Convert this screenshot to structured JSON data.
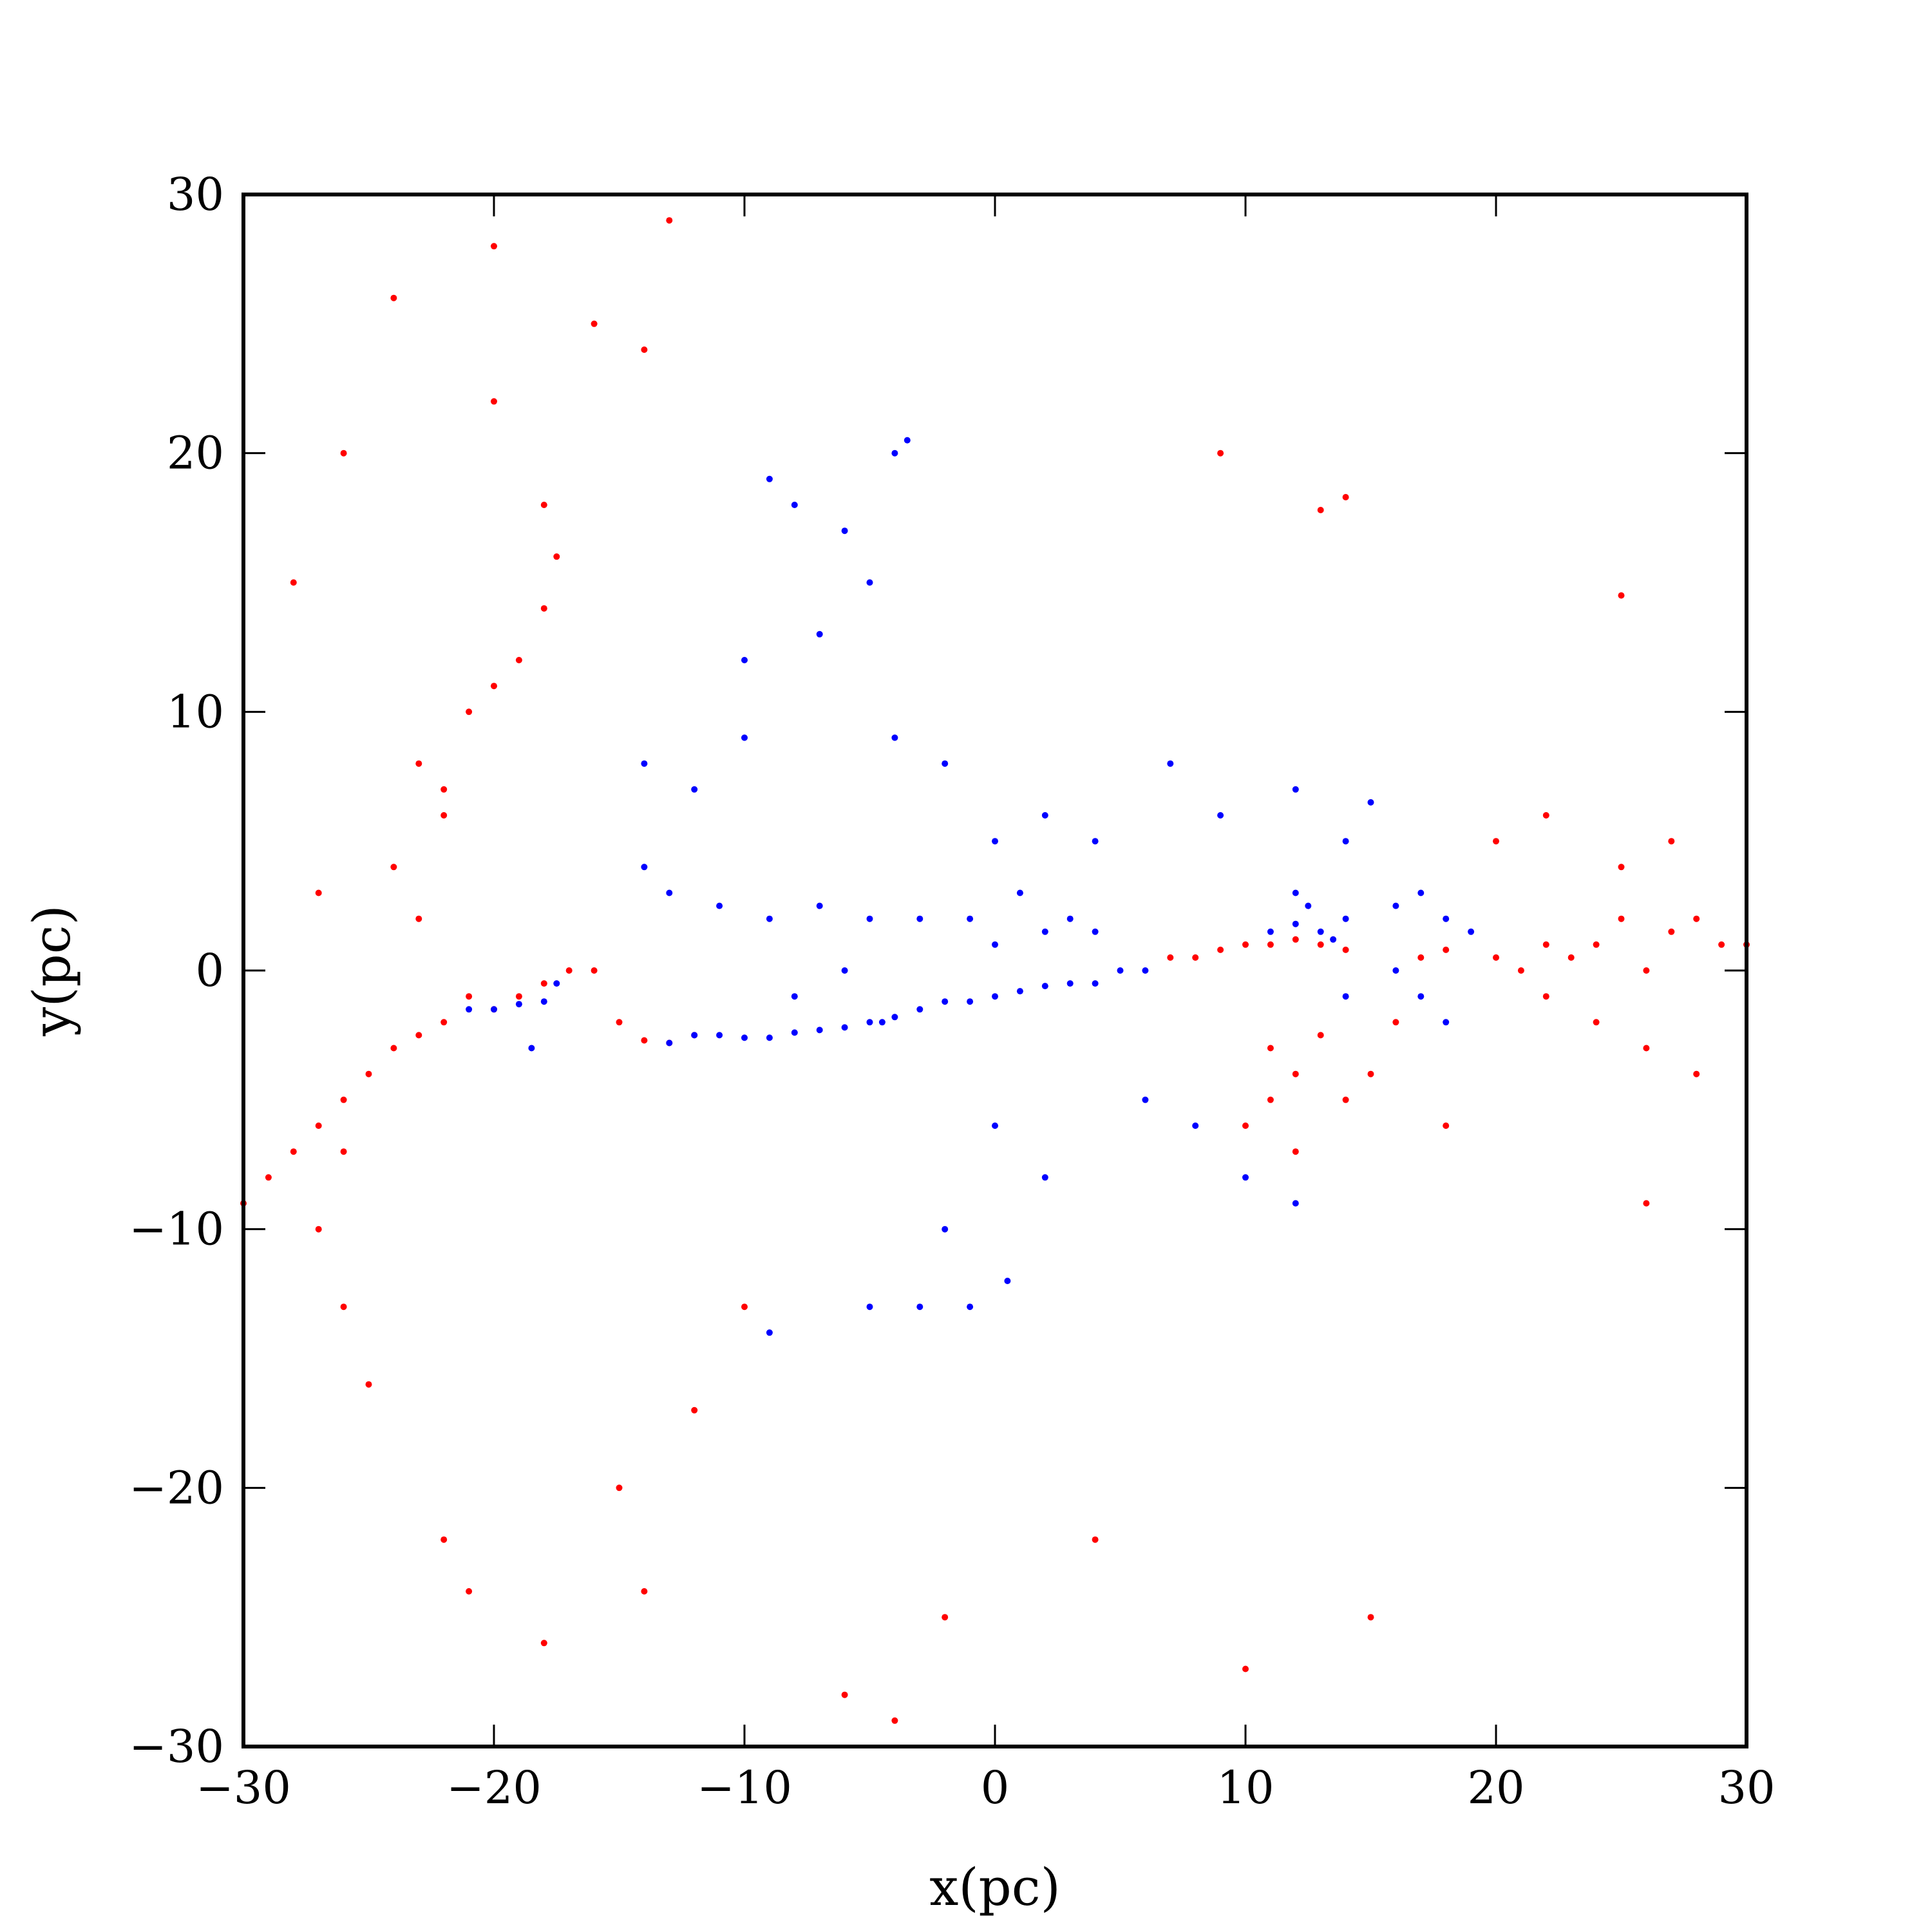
{
  "chart_data": {
    "type": "scatter",
    "title": "",
    "xlabel": "x(pc)",
    "ylabel": "y(pc)",
    "xlim": [
      -30,
      30
    ],
    "ylim": [
      -30,
      30
    ],
    "xticks": [
      -30,
      -20,
      -10,
      0,
      10,
      20,
      30
    ],
    "yticks": [
      -30,
      -20,
      -10,
      0,
      10,
      20,
      30
    ],
    "xtick_labels": [
      "−30",
      "−20",
      "−10",
      "0",
      "10",
      "20",
      "30"
    ],
    "ytick_labels": [
      "−30",
      "−20",
      "−10",
      "0",
      "10",
      "20",
      "30"
    ],
    "grid": false,
    "legend": "none",
    "series": [
      {
        "color": "#ff0000",
        "points": [
          [
            -22,
            6
          ],
          [
            -21,
            10
          ],
          [
            -20,
            11
          ],
          [
            -19,
            12
          ],
          [
            -18,
            14
          ],
          [
            -17.5,
            16
          ],
          [
            -23,
            8
          ],
          [
            -22,
            7
          ],
          [
            -24,
            4
          ],
          [
            -23,
            2
          ],
          [
            -21,
            -1
          ],
          [
            -20,
            -1.5
          ],
          [
            -19,
            -1
          ],
          [
            -18,
            -0.5
          ],
          [
            -17,
            0
          ],
          [
            -16,
            0
          ],
          [
            -15,
            -2
          ],
          [
            -14,
            -2.7
          ],
          [
            -13,
            -2.8
          ],
          [
            -12,
            -2.5
          ],
          [
            -25,
            -4
          ],
          [
            -26,
            -5
          ],
          [
            -27,
            -6
          ],
          [
            -28,
            -7
          ],
          [
            -29,
            -8
          ],
          [
            -30,
            -9
          ],
          [
            -24,
            -3
          ],
          [
            -23,
            -2.5
          ],
          [
            -22,
            -2
          ],
          [
            -26,
            -7
          ],
          [
            -27,
            -10
          ],
          [
            -26,
            -13
          ],
          [
            -25,
            -16
          ],
          [
            -22,
            -22
          ],
          [
            -21,
            -24
          ],
          [
            -18,
            -26
          ],
          [
            -15,
            -20
          ],
          [
            -12,
            -17
          ],
          [
            -10,
            -13
          ],
          [
            -14,
            -24
          ],
          [
            -26,
            20
          ],
          [
            -24,
            26
          ],
          [
            -20,
            28
          ],
          [
            -16,
            25
          ],
          [
            -14,
            24
          ],
          [
            -13,
            29
          ],
          [
            -20,
            22
          ],
          [
            -18,
            18
          ],
          [
            -28,
            15
          ],
          [
            -27,
            3
          ],
          [
            7,
            0.5
          ],
          [
            8,
            0.5
          ],
          [
            9,
            0.8
          ],
          [
            10,
            1
          ],
          [
            11,
            1
          ],
          [
            12,
            1.2
          ],
          [
            13,
            1
          ],
          [
            14,
            0.8
          ],
          [
            11,
            -3
          ],
          [
            12,
            -4
          ],
          [
            13,
            -2.5
          ],
          [
            11,
            -5
          ],
          [
            10,
            -6
          ],
          [
            12,
            -7
          ],
          [
            14,
            -5
          ],
          [
            15,
            -4
          ],
          [
            16,
            -2
          ],
          [
            17,
            0.5
          ],
          [
            18,
            0.8
          ],
          [
            20,
            0.5
          ],
          [
            21,
            0
          ],
          [
            22,
            1
          ],
          [
            23,
            0.5
          ],
          [
            24,
            1
          ],
          [
            25,
            2
          ],
          [
            26,
            0
          ],
          [
            27,
            1.5
          ],
          [
            28,
            2
          ],
          [
            29,
            1
          ],
          [
            30,
            1
          ],
          [
            22,
            -1
          ],
          [
            24,
            -2
          ],
          [
            26,
            -3
          ],
          [
            28,
            -4
          ],
          [
            25,
            4
          ],
          [
            27,
            5
          ],
          [
            20,
            5
          ],
          [
            22,
            6
          ],
          [
            18,
            -6
          ],
          [
            26,
            -9
          ],
          [
            9,
            20
          ],
          [
            13,
            17.8
          ],
          [
            14,
            18.3
          ],
          [
            25,
            14.5
          ],
          [
            -6,
            -28
          ],
          [
            -2,
            -25
          ],
          [
            4,
            -22
          ],
          [
            -4,
            -29
          ],
          [
            10,
            -27
          ],
          [
            15,
            -25
          ]
        ]
      },
      {
        "color": "#0000ff",
        "points": [
          [
            -21,
            -1.5
          ],
          [
            -20,
            -1.5
          ],
          [
            -19,
            -1.3
          ],
          [
            -18,
            -1.2
          ],
          [
            -18.5,
            -3
          ],
          [
            -17.5,
            -0.5
          ],
          [
            -13,
            -2.8
          ],
          [
            -12,
            -2.5
          ],
          [
            -11,
            -2.5
          ],
          [
            -10,
            -2.6
          ],
          [
            -9,
            -2.6
          ],
          [
            -8,
            -2.4
          ],
          [
            -7,
            -2.3
          ],
          [
            -6,
            -2.2
          ],
          [
            -5,
            -2
          ],
          [
            -4.5,
            -2
          ],
          [
            -4,
            -1.8
          ],
          [
            -3,
            -1.5
          ],
          [
            -2,
            -1.2
          ],
          [
            -1,
            -1.2
          ],
          [
            0,
            -1
          ],
          [
            1,
            -0.8
          ],
          [
            2,
            -0.6
          ],
          [
            3,
            -0.5
          ],
          [
            4,
            -0.5
          ],
          [
            5,
            0
          ],
          [
            6,
            0
          ],
          [
            -3,
            2
          ],
          [
            -5,
            2
          ],
          [
            -7,
            2.5
          ],
          [
            -9,
            2
          ],
          [
            -11,
            2.5
          ],
          [
            -1,
            2
          ],
          [
            1,
            3
          ],
          [
            3,
            2
          ],
          [
            -6,
            0
          ],
          [
            -8,
            -1
          ],
          [
            0,
            1
          ],
          [
            2,
            1.5
          ],
          [
            4,
            1.5
          ],
          [
            11,
            1.5
          ],
          [
            12,
            1.8
          ],
          [
            13,
            1.5
          ],
          [
            12.5,
            2.5
          ],
          [
            13.5,
            1.2
          ],
          [
            12,
            3
          ],
          [
            14,
            2
          ],
          [
            16,
            2.5
          ],
          [
            17,
            3
          ],
          [
            18,
            2
          ],
          [
            19,
            1.5
          ],
          [
            16,
            0
          ],
          [
            17,
            -1
          ],
          [
            18,
            -2
          ],
          [
            14,
            -1
          ],
          [
            -14,
            4
          ],
          [
            -12,
            7
          ],
          [
            -13,
            3
          ],
          [
            -8,
            18
          ],
          [
            -6,
            17
          ],
          [
            -5,
            15
          ],
          [
            -7,
            13
          ],
          [
            -4,
            20
          ],
          [
            -3.5,
            20.5
          ],
          [
            -9,
            19
          ],
          [
            -10,
            12
          ],
          [
            -2,
            8
          ],
          [
            0,
            5
          ],
          [
            2,
            6
          ],
          [
            4,
            5
          ],
          [
            6,
            -5
          ],
          [
            8,
            -6
          ],
          [
            10,
            -8
          ],
          [
            12,
            -9
          ],
          [
            0,
            -6
          ],
          [
            2,
            -8
          ],
          [
            -2,
            -10
          ],
          [
            -1,
            -13
          ],
          [
            0.5,
            -12
          ],
          [
            14,
            5
          ],
          [
            15,
            6.5
          ],
          [
            12,
            7
          ],
          [
            9,
            6
          ],
          [
            7,
            8
          ],
          [
            -4,
            9
          ],
          [
            -10,
            9
          ],
          [
            -14,
            8
          ],
          [
            -9,
            -14
          ],
          [
            -5,
            -13
          ],
          [
            -3,
            -13
          ]
        ]
      }
    ]
  }
}
